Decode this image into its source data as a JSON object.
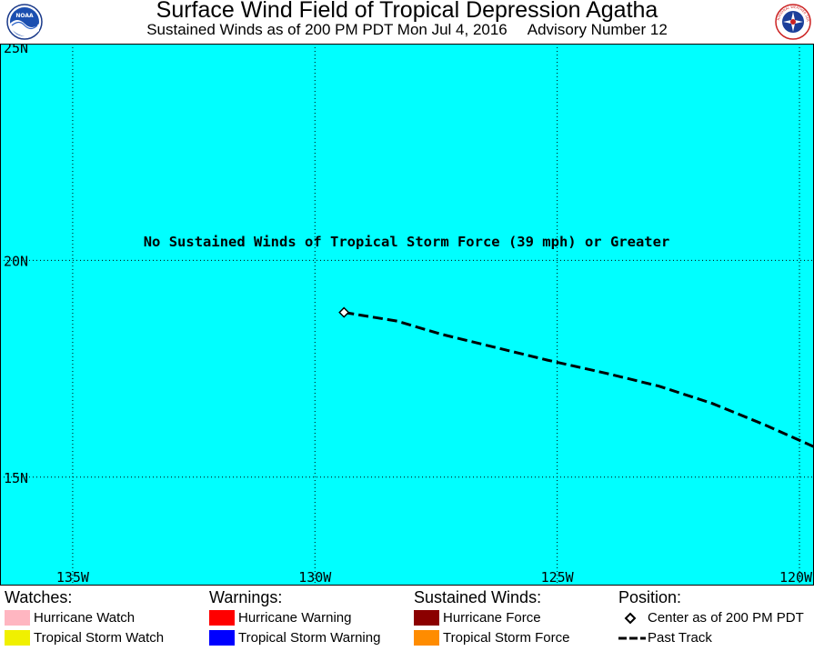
{
  "header": {
    "title": "Surface Wind Field of Tropical Depression Agatha",
    "subtitle_left": "Sustained Winds as of 200 PM PDT Mon Jul 4, 2016",
    "subtitle_right": "Advisory Number 12",
    "left_logo": "noaa-logo",
    "right_logo": "national-weather-service-logo",
    "right_logo_text": "NATIONAL WEATHER SERVICE"
  },
  "map": {
    "background_color": "#00ffff",
    "notice": "No Sustained Winds of Tropical Storm Force (39 mph) or Greater",
    "lat_range": [
      12.5,
      25
    ],
    "lon_range": [
      -136.5,
      -119.7
    ],
    "lat_labels": [
      {
        "value": 25,
        "label": "25N"
      },
      {
        "value": 20,
        "label": "20N"
      },
      {
        "value": 15,
        "label": "15N"
      }
    ],
    "lon_labels": [
      {
        "value": -135,
        "label": "135W"
      },
      {
        "value": -130,
        "label": "130W"
      },
      {
        "value": -125,
        "label": "125W"
      },
      {
        "value": -120,
        "label": "120W"
      }
    ],
    "center": {
      "lat": 18.8,
      "lon": -129.4
    },
    "past_track": [
      {
        "lat": 15.7,
        "lon": -119.7
      },
      {
        "lat": 16.2,
        "lon": -120.7
      },
      {
        "lat": 16.7,
        "lon": -121.8
      },
      {
        "lat": 17.1,
        "lon": -122.9
      },
      {
        "lat": 17.4,
        "lon": -124.0
      },
      {
        "lat": 17.7,
        "lon": -125.2
      },
      {
        "lat": 18.0,
        "lon": -126.3
      },
      {
        "lat": 18.3,
        "lon": -127.4
      },
      {
        "lat": 18.6,
        "lon": -128.3
      },
      {
        "lat": 18.8,
        "lon": -129.4
      }
    ]
  },
  "legend": {
    "watches": {
      "heading": "Watches:",
      "items": [
        {
          "label": "Hurricane Watch",
          "color": "#ffb6c1"
        },
        {
          "label": "Tropical Storm Watch",
          "color": "#f0f000"
        }
      ]
    },
    "warnings": {
      "heading": "Warnings:",
      "items": [
        {
          "label": "Hurricane Warning",
          "color": "#ff0000"
        },
        {
          "label": "Tropical Storm Warning",
          "color": "#0000ff"
        }
      ]
    },
    "winds": {
      "heading": "Sustained Winds:",
      "items": [
        {
          "label": "Hurricane Force",
          "color": "#8b0000"
        },
        {
          "label": "Tropical Storm Force",
          "color": "#ff8c00"
        }
      ]
    },
    "position": {
      "heading": "Position:",
      "center_label": "Center as of 200 PM PDT",
      "track_label": "Past Track"
    }
  }
}
